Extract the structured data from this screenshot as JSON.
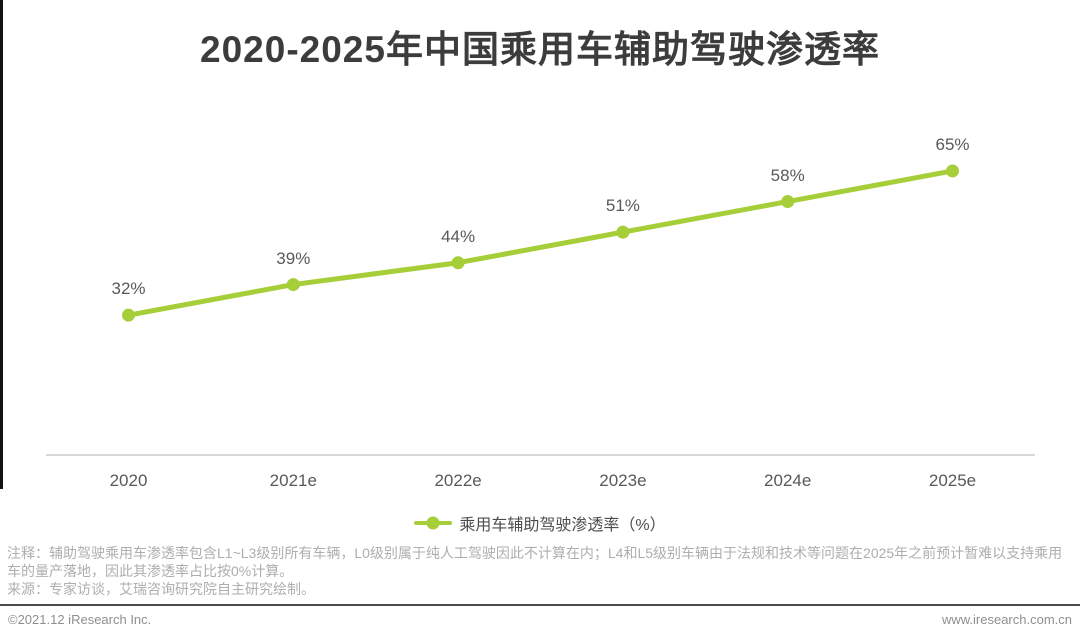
{
  "page": {
    "title": "2020-2025年中国乘用车辅助驾驶渗透率",
    "colors": {
      "line_green": "#a5ce39",
      "left_border": "#131313",
      "axis_gray": "#d8d8d8"
    }
  },
  "chart_data": {
    "type": "line",
    "title": "2020-2025年中国乘用车辅助驾驶渗透率",
    "categories": [
      "2020",
      "2021e",
      "2022e",
      "2023e",
      "2024e",
      "2025e"
    ],
    "series": [
      {
        "name": "乘用车辅助驾驶渗透率（%）",
        "values": [
          32,
          39,
          44,
          51,
          58,
          65
        ]
      }
    ],
    "data_labels": [
      "32%",
      "39%",
      "44%",
      "51%",
      "58%",
      "65%"
    ],
    "ylabel": "",
    "xlabel": "",
    "ylim": [
      0,
      104
    ],
    "grid": false,
    "legend_position": "bottom",
    "line_color": "#a5ce39",
    "marker": "circle"
  },
  "legend": {
    "label": "乘用车辅助驾驶渗透率（%）"
  },
  "notes": {
    "annotation": "注释：辅助驾驶乘用车渗透率包含L1~L3级别所有车辆，L0级别属于纯人工驾驶因此不计算在内；L4和L5级别车辆由于法规和技术等问题在2025年之前预计暂难以支持乘用车的量产落地，因此其渗透率占比按0%计算。",
    "source": "来源：专家访谈，艾瑞咨询研究院自主研究绘制。"
  },
  "footer": {
    "copyright": "©2021.12 iResearch Inc.",
    "website": "www.iresearch.com.cn"
  }
}
